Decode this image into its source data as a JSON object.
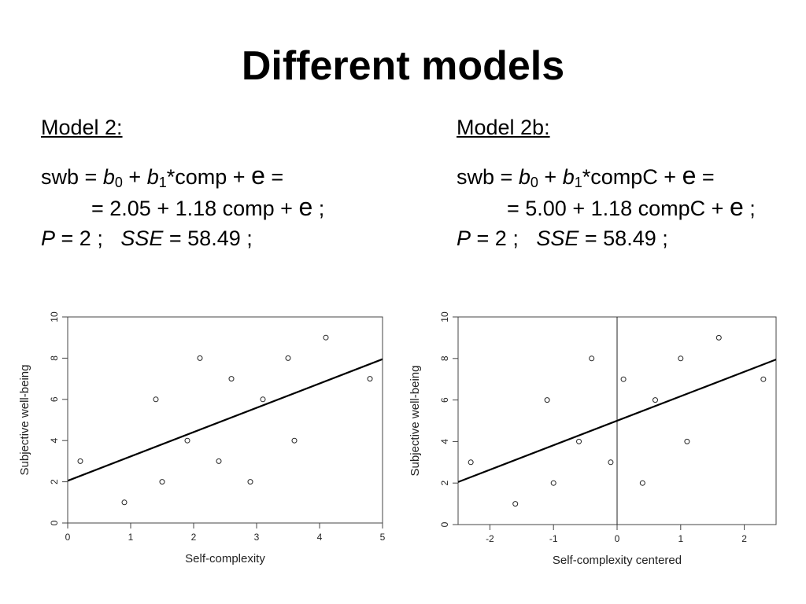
{
  "slide": {
    "title": "Different models"
  },
  "model_left": {
    "heading": "Model 2:",
    "lhs": "swb",
    "eq_sign": "=",
    "b0": "b",
    "b0_sub": "0",
    "plus": "+",
    "b1": "b",
    "b1_sub": "1",
    "predictor_term": "*comp +",
    "error": "e",
    "line1_end": "=",
    "line2_text": "= 2.05 + 1.18 comp +",
    "line2_end": ";",
    "p_label": "P",
    "p_value": "= 2 ;",
    "sse_label": "SSE",
    "sse_value": "= 58.49 ;"
  },
  "model_right": {
    "heading": "Model 2b:",
    "lhs": "swb",
    "eq_sign": "=",
    "b0": "b",
    "b0_sub": "0",
    "plus": "+",
    "b1": "b",
    "b1_sub": "1",
    "predictor_term": "*compC +",
    "error": "e",
    "line1_end": "=",
    "line2_text": "= 5.00 + 1.18 compC +",
    "line2_end": ";",
    "p_label": "P",
    "p_value": "= 2 ;",
    "sse_label": "SSE",
    "sse_value": "= 58.49 ;"
  },
  "chart_data": [
    {
      "type": "scatter",
      "title": "",
      "xlabel": "Self-complexity",
      "ylabel": "Subjective well-being",
      "xlim": [
        0,
        5
      ],
      "ylim": [
        0,
        10
      ],
      "xticks": [
        0,
        1,
        2,
        3,
        4,
        5
      ],
      "yticks": [
        0,
        2,
        4,
        6,
        8,
        10
      ],
      "grid": false,
      "points": [
        {
          "x": 0.2,
          "y": 3
        },
        {
          "x": 0.9,
          "y": 1
        },
        {
          "x": 1.4,
          "y": 6
        },
        {
          "x": 1.5,
          "y": 2
        },
        {
          "x": 1.9,
          "y": 4
        },
        {
          "x": 2.1,
          "y": 8
        },
        {
          "x": 2.4,
          "y": 3
        },
        {
          "x": 2.6,
          "y": 7
        },
        {
          "x": 2.9,
          "y": 2
        },
        {
          "x": 3.1,
          "y": 6
        },
        {
          "x": 3.5,
          "y": 8
        },
        {
          "x": 3.6,
          "y": 4
        },
        {
          "x": 4.1,
          "y": 9
        },
        {
          "x": 4.8,
          "y": 7
        }
      ],
      "regression_line": {
        "intercept": 2.05,
        "slope": 1.18
      },
      "vertical_line_at": null
    },
    {
      "type": "scatter",
      "title": "",
      "xlabel": "Self-complexity centered",
      "ylabel": "Subjective well-being",
      "xlim": [
        -2.5,
        2.5
      ],
      "ylim": [
        0,
        10
      ],
      "xticks": [
        -2,
        -1,
        0,
        1,
        2
      ],
      "yticks": [
        0,
        2,
        4,
        6,
        8,
        10
      ],
      "grid": false,
      "points": [
        {
          "x": -2.3,
          "y": 3
        },
        {
          "x": -1.6,
          "y": 1
        },
        {
          "x": -1.1,
          "y": 6
        },
        {
          "x": -1.0,
          "y": 2
        },
        {
          "x": -0.6,
          "y": 4
        },
        {
          "x": -0.4,
          "y": 8
        },
        {
          "x": -0.1,
          "y": 3
        },
        {
          "x": 0.1,
          "y": 7
        },
        {
          "x": 0.4,
          "y": 2
        },
        {
          "x": 0.6,
          "y": 6
        },
        {
          "x": 1.0,
          "y": 8
        },
        {
          "x": 1.1,
          "y": 4
        },
        {
          "x": 1.6,
          "y": 9
        },
        {
          "x": 2.3,
          "y": 7
        }
      ],
      "regression_line": {
        "intercept": 5.0,
        "slope": 1.18
      },
      "vertical_line_at": 0
    }
  ]
}
